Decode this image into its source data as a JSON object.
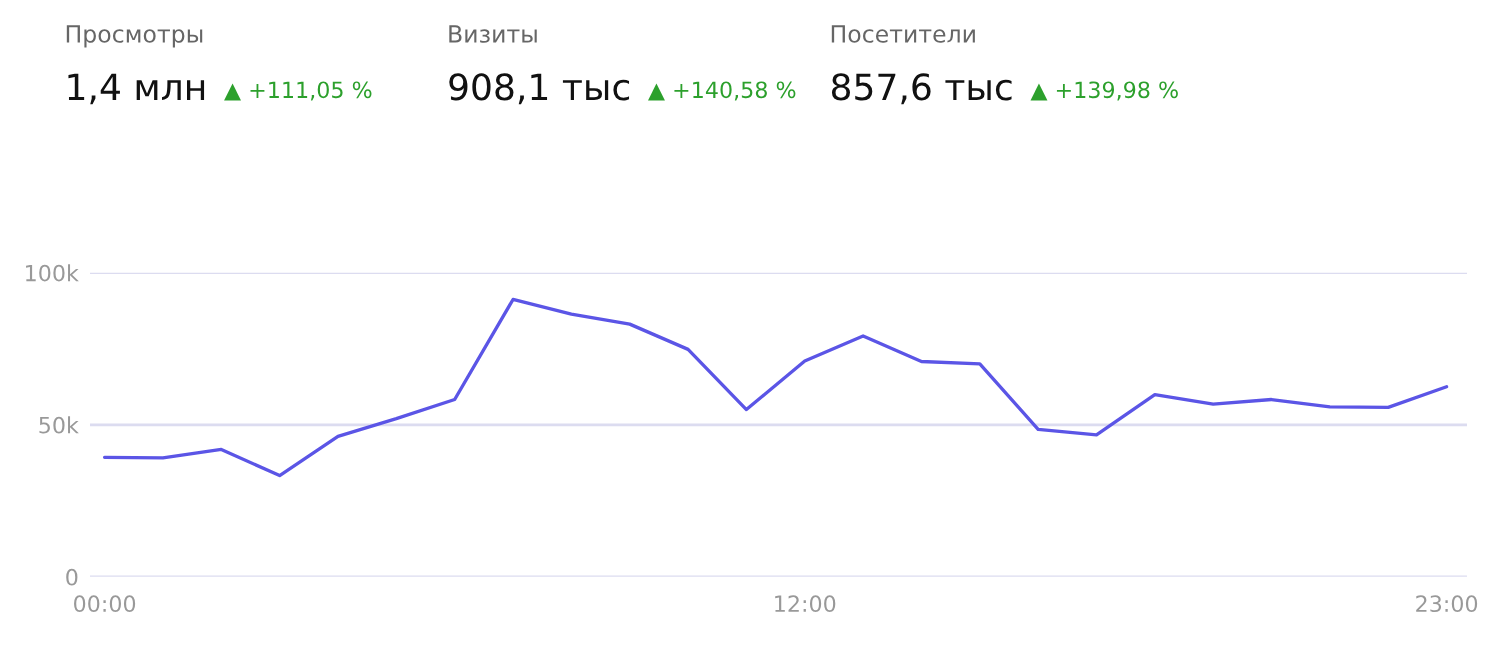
{
  "chart_data": {
    "type": "line",
    "x": [
      0,
      1,
      2,
      3,
      4,
      5,
      6,
      7,
      8,
      9,
      10,
      11,
      12,
      13,
      14,
      15,
      16,
      17,
      18,
      19,
      20,
      21,
      22,
      23
    ],
    "series": [
      {
        "color": "#5b55e6",
        "values": [
          39300,
          39100,
          41900,
          33300,
          46200,
          52000,
          58300,
          91200,
          86400,
          83100,
          74800,
          55000,
          71000,
          79200,
          70800,
          70000,
          48500,
          46700,
          59900,
          56800,
          58300,
          55900,
          55700,
          62500
        ]
      }
    ],
    "xlim": [
      -0.25,
      23.35
    ],
    "xticks": [
      {
        "value": 0,
        "label": "00:00"
      },
      {
        "value": 12,
        "label": "12:00"
      },
      {
        "value": 23,
        "label": "23:00"
      }
    ],
    "ylim": [
      0,
      100000
    ],
    "yticks": [
      0,
      {
        "value": 50000,
        "label": "50k"
      },
      {
        "value": 100000,
        "label": "100k"
      }
    ],
    "grid": "y",
    "marker": "none",
    "line_style": "solid",
    "annotations": [
      "Просмотры",
      "1,4 млн",
      "▲ +111,05 %",
      "Визиты",
      "908,1 тыс",
      "▲ +140,58 %",
      "Посетители",
      "857,6 тыс",
      "▲ +139,98 %"
    ]
  }
}
